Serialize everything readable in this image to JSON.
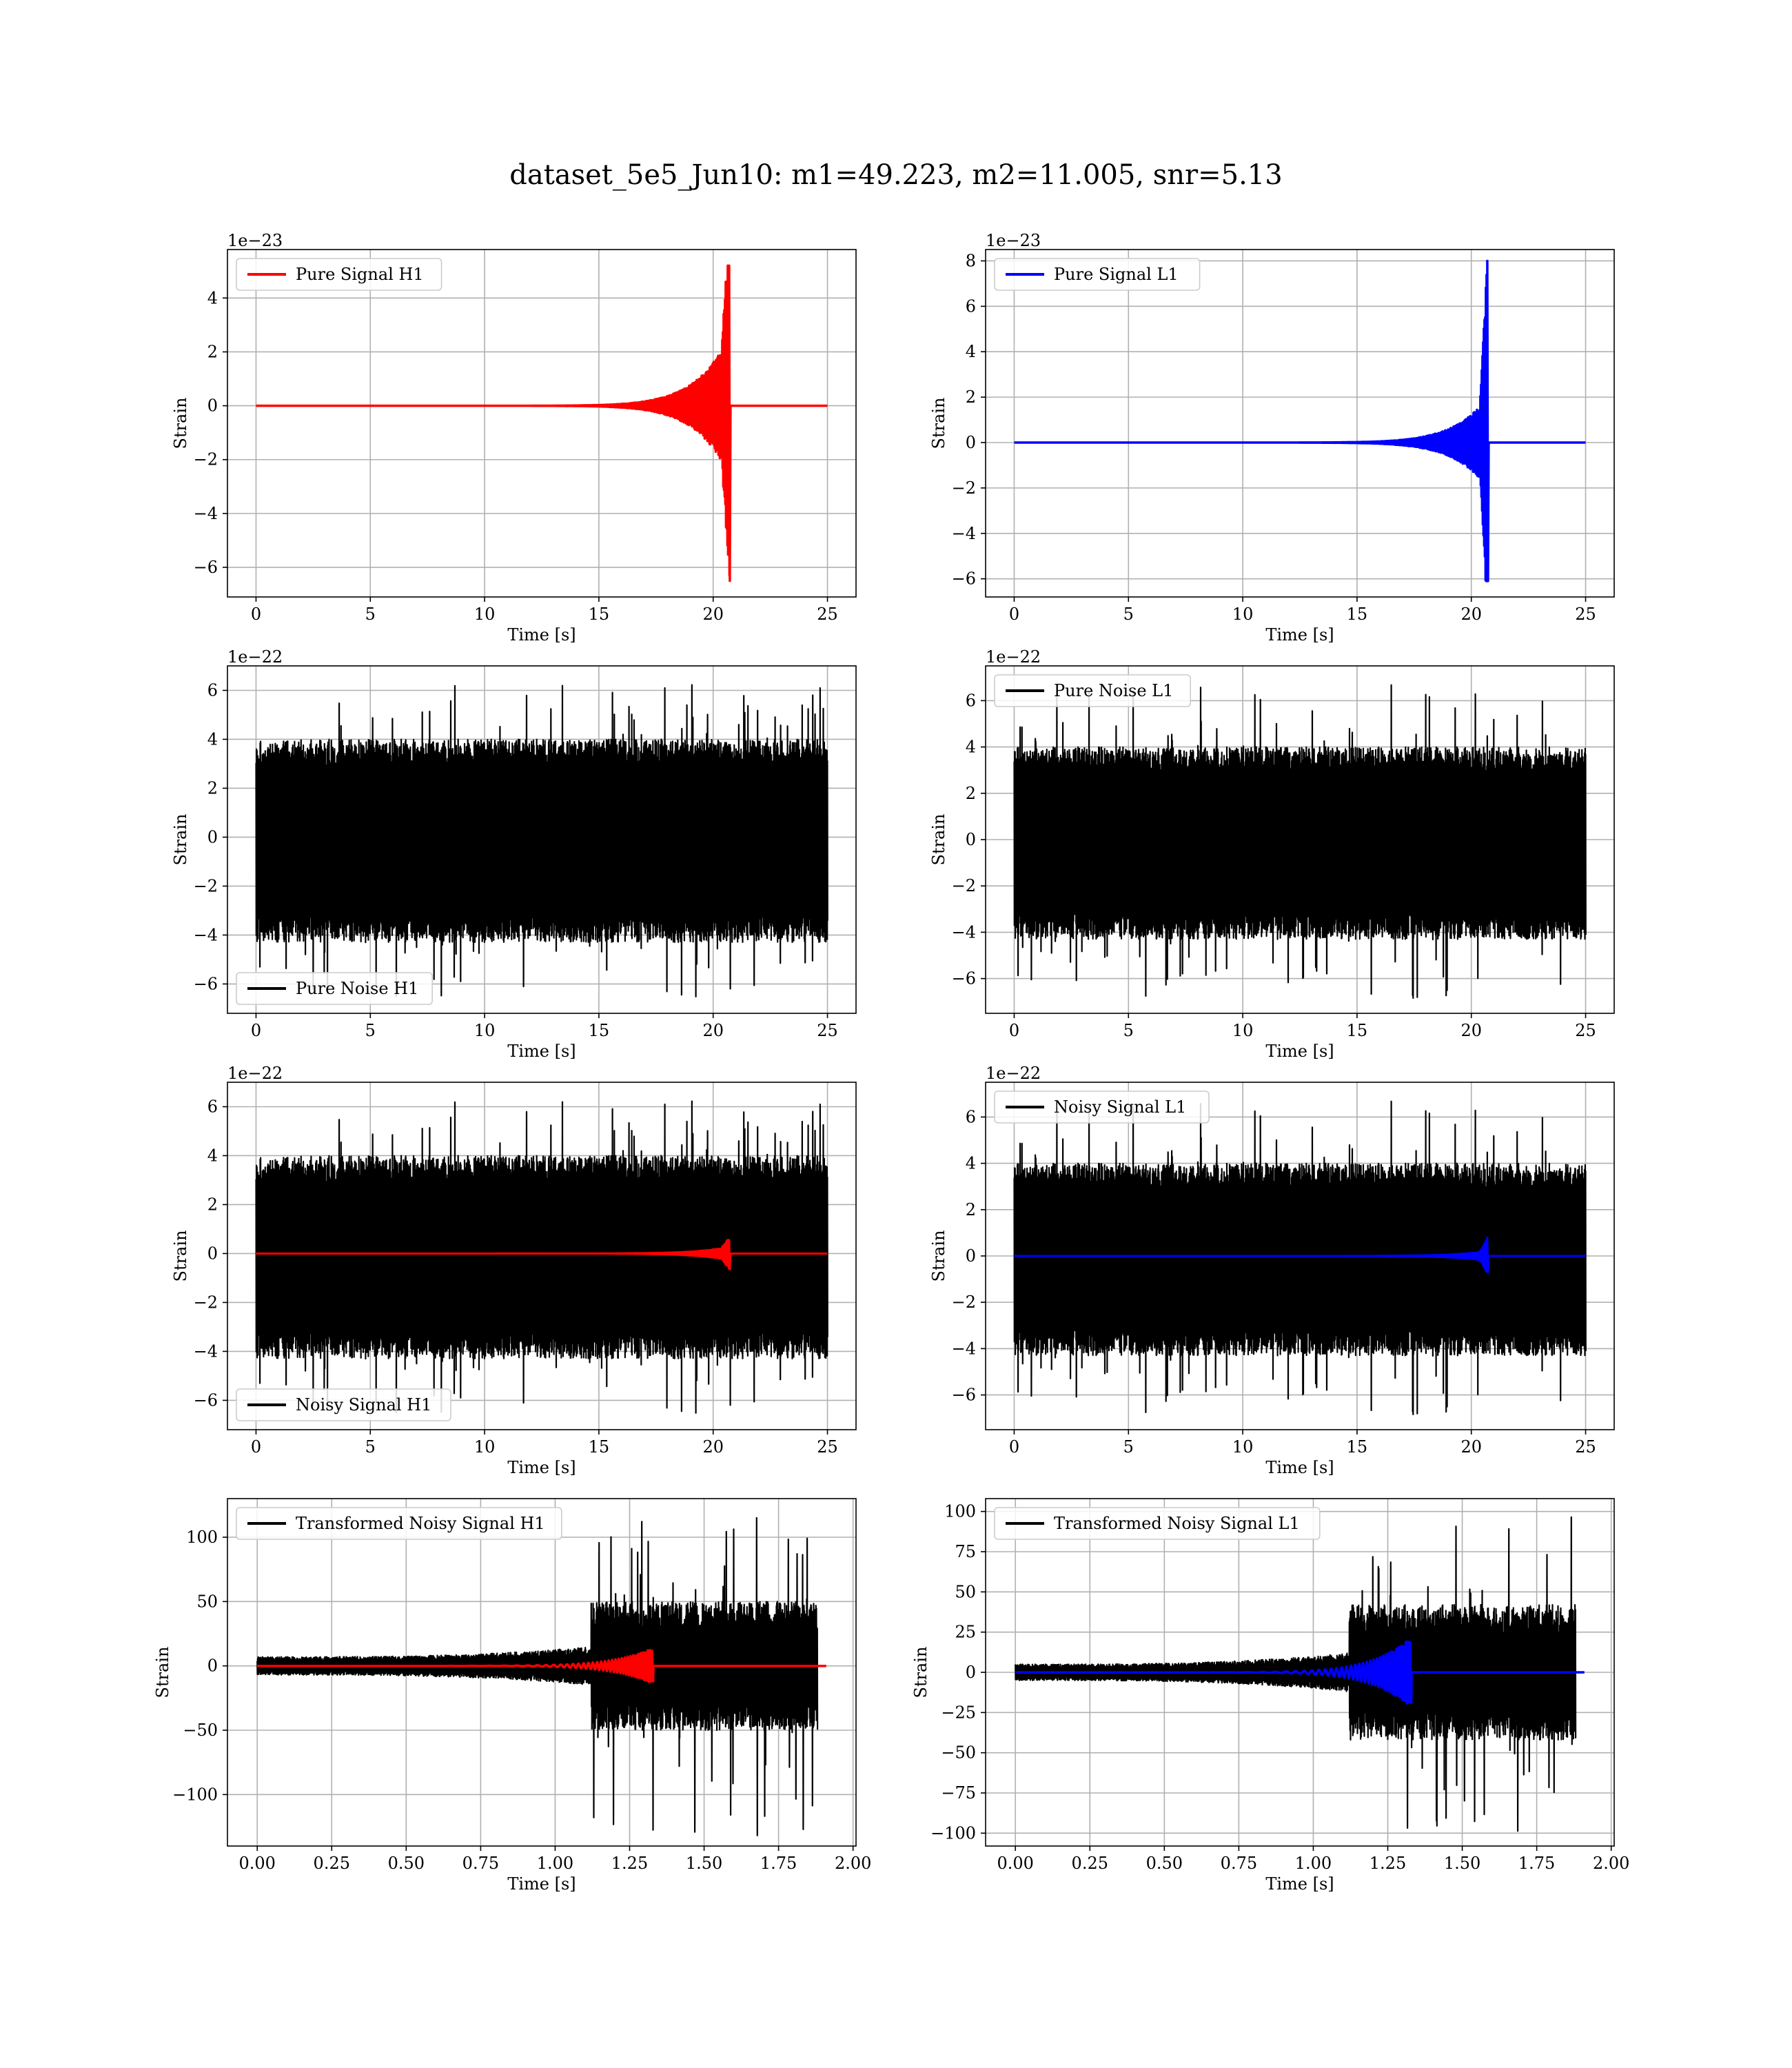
{
  "figure": {
    "title": "dataset_5e5_Jun10: m1=49.223, m2=11.005, snr=5.13"
  },
  "colors": {
    "signal_h1": "#ff0000",
    "signal_l1": "#0000ff",
    "noise": "#000000",
    "grid": "#b0b0b0"
  },
  "chart_data": [
    {
      "type": "line",
      "id": "pure-signal-h1",
      "kind": "signal",
      "offset_label": "1e−23",
      "xlabel": "Time [s]",
      "ylabel": "Strain",
      "xlim": [
        -1.25,
        26.25
      ],
      "ylim": [
        -7.1,
        5.8
      ],
      "xticks": [
        0,
        5,
        10,
        15,
        20,
        25
      ],
      "xtick_labels": [
        "0",
        "5",
        "10",
        "15",
        "20",
        "25"
      ],
      "yticks": [
        -6,
        -4,
        -2,
        0,
        2,
        4
      ],
      "ytick_labels": [
        "−6",
        "−4",
        "−2",
        "0",
        "2",
        "4"
      ],
      "legend": {
        "loc": "upper left"
      },
      "series": [
        {
          "name": "Pure Signal H1",
          "color": "#ff0000",
          "envelope": {
            "t_start": 0,
            "t_merger": 20.7,
            "t_end": 25,
            "peak_pos": 5.2,
            "peak_neg": -6.5,
            "plateau": 2.6
          }
        }
      ]
    },
    {
      "type": "line",
      "id": "pure-signal-l1",
      "kind": "signal",
      "offset_label": "1e−23",
      "xlabel": "Time [s]",
      "ylabel": "Strain",
      "xlim": [
        -1.25,
        26.25
      ],
      "ylim": [
        -6.8,
        8.5
      ],
      "xticks": [
        0,
        5,
        10,
        15,
        20,
        25
      ],
      "xtick_labels": [
        "0",
        "5",
        "10",
        "15",
        "20",
        "25"
      ],
      "yticks": [
        -6,
        -4,
        -2,
        0,
        2,
        4,
        6,
        8
      ],
      "ytick_labels": [
        "−6",
        "−4",
        "−2",
        "0",
        "2",
        "4",
        "6",
        "8"
      ],
      "legend": {
        "loc": "upper left"
      },
      "series": [
        {
          "name": "Pure Signal L1",
          "color": "#0000ff",
          "envelope": {
            "t_start": 0,
            "t_merger": 20.7,
            "t_end": 25,
            "peak_pos": 8.0,
            "peak_neg": -6.1,
            "plateau": 2.0
          }
        }
      ]
    },
    {
      "type": "line",
      "id": "pure-noise-h1",
      "kind": "noise",
      "offset_label": "1e−22",
      "xlabel": "Time [s]",
      "ylabel": "Strain",
      "xlim": [
        -1.25,
        26.25
      ],
      "ylim": [
        -7.2,
        7.0
      ],
      "xticks": [
        0,
        5,
        10,
        15,
        20,
        25
      ],
      "xtick_labels": [
        "0",
        "5",
        "10",
        "15",
        "20",
        "25"
      ],
      "yticks": [
        -6,
        -4,
        -2,
        0,
        2,
        4,
        6
      ],
      "ytick_labels": [
        "−6",
        "−4",
        "−2",
        "0",
        "2",
        "4",
        "6"
      ],
      "legend": {
        "loc": "lower left"
      },
      "series": [
        {
          "name": "Pure Noise H1",
          "color": "#000000",
          "noise": {
            "t_start": 0,
            "t_end": 25,
            "mean": -0.4,
            "typical_max": 4.0,
            "typical_min": -4.3,
            "extreme_max": 6.3,
            "extreme_min": -6.6
          }
        }
      ]
    },
    {
      "type": "line",
      "id": "pure-noise-l1",
      "kind": "noise",
      "offset_label": "1e−22",
      "xlabel": "Time [s]",
      "ylabel": "Strain",
      "xlim": [
        -1.25,
        26.25
      ],
      "ylim": [
        -7.5,
        7.5
      ],
      "xticks": [
        0,
        5,
        10,
        15,
        20,
        25
      ],
      "xtick_labels": [
        "0",
        "5",
        "10",
        "15",
        "20",
        "25"
      ],
      "yticks": [
        -6,
        -4,
        -2,
        0,
        2,
        4,
        6
      ],
      "ytick_labels": [
        "−6",
        "−4",
        "−2",
        "0",
        "2",
        "4",
        "6"
      ],
      "legend": {
        "loc": "upper left"
      },
      "series": [
        {
          "name": "Pure Noise L1",
          "color": "#000000",
          "noise": {
            "t_start": 0,
            "t_end": 25,
            "mean": -0.4,
            "typical_max": 4.0,
            "typical_min": -4.3,
            "extreme_max": 6.8,
            "extreme_min": -6.9
          }
        }
      ]
    },
    {
      "type": "line",
      "id": "noisy-signal-h1",
      "kind": "noisy",
      "offset_label": "1e−22",
      "xlabel": "Time [s]",
      "ylabel": "Strain",
      "xlim": [
        -1.25,
        26.25
      ],
      "ylim": [
        -7.2,
        7.0
      ],
      "xticks": [
        0,
        5,
        10,
        15,
        20,
        25
      ],
      "xtick_labels": [
        "0",
        "5",
        "10",
        "15",
        "20",
        "25"
      ],
      "yticks": [
        -6,
        -4,
        -2,
        0,
        2,
        4,
        6
      ],
      "ytick_labels": [
        "−6",
        "−4",
        "−2",
        "0",
        "2",
        "4",
        "6"
      ],
      "legend": {
        "loc": "lower left"
      },
      "series": [
        {
          "name": "Noisy Signal H1",
          "color": "#000000",
          "noise": {
            "t_start": 0,
            "t_end": 25,
            "mean": -0.4,
            "typical_max": 4.0,
            "typical_min": -4.3,
            "extreme_max": 6.3,
            "extreme_min": -6.6
          }
        },
        {
          "name": "",
          "color": "#ff0000",
          "envelope": {
            "t_start": 0,
            "t_merger": 20.7,
            "t_end": 25,
            "peak_pos": 0.55,
            "peak_neg": -0.65,
            "plateau": 0.28
          }
        }
      ]
    },
    {
      "type": "line",
      "id": "noisy-signal-l1",
      "kind": "noisy",
      "offset_label": "1e−22",
      "xlabel": "Time [s]",
      "ylabel": "Strain",
      "xlim": [
        -1.25,
        26.25
      ],
      "ylim": [
        -7.5,
        7.5
      ],
      "xticks": [
        0,
        5,
        10,
        15,
        20,
        25
      ],
      "xtick_labels": [
        "0",
        "5",
        "10",
        "15",
        "20",
        "25"
      ],
      "yticks": [
        -6,
        -4,
        -2,
        0,
        2,
        4,
        6
      ],
      "ytick_labels": [
        "−6",
        "−4",
        "−2",
        "0",
        "2",
        "4",
        "6"
      ],
      "legend": {
        "loc": "upper left"
      },
      "series": [
        {
          "name": "Noisy Signal L1",
          "color": "#000000",
          "noise": {
            "t_start": 0,
            "t_end": 25,
            "mean": -0.4,
            "typical_max": 4.0,
            "typical_min": -4.3,
            "extreme_max": 6.8,
            "extreme_min": -6.9
          }
        },
        {
          "name": "",
          "color": "#0000ff",
          "envelope": {
            "t_start": 0,
            "t_merger": 20.7,
            "t_end": 25,
            "peak_pos": 0.8,
            "peak_neg": -0.7,
            "plateau": 0.22
          }
        }
      ]
    },
    {
      "type": "line",
      "id": "transformed-noisy-signal-h1",
      "kind": "transformed",
      "offset_label": "",
      "xlabel": "Time [s]",
      "ylabel": "Strain",
      "xlim": [
        -0.1,
        2.01
      ],
      "ylim": [
        -140,
        130
      ],
      "xticks": [
        0,
        0.25,
        0.5,
        0.75,
        1.0,
        1.25,
        1.5,
        1.75,
        2.0
      ],
      "xtick_labels": [
        "0.00",
        "0.25",
        "0.50",
        "0.75",
        "1.00",
        "1.25",
        "1.50",
        "1.75",
        "2.00"
      ],
      "yticks": [
        -100,
        -50,
        0,
        50,
        100
      ],
      "ytick_labels": [
        "−100",
        "−50",
        "0",
        "50",
        "100"
      ],
      "legend": {
        "loc": "upper left"
      },
      "series": [
        {
          "name": "Transformed Noisy Signal H1",
          "color": "#000000",
          "transformed": {
            "t_start": 0,
            "t_step": 1.12,
            "t_end": 1.88,
            "early_amp_start": 7,
            "early_amp_end": 15,
            "late_amp": 50,
            "extreme_max": 118,
            "extreme_min": -132
          }
        },
        {
          "name": "",
          "color": "#ff0000",
          "chirp": {
            "t_start": 0,
            "t_merger": 1.33,
            "t_end": 1.91,
            "peak": 14
          }
        }
      ]
    },
    {
      "type": "line",
      "id": "transformed-noisy-signal-l1",
      "kind": "transformed",
      "offset_label": "",
      "xlabel": "Time [s]",
      "ylabel": "Strain",
      "xlim": [
        -0.1,
        2.01
      ],
      "ylim": [
        -108,
        108
      ],
      "xticks": [
        0,
        0.25,
        0.5,
        0.75,
        1.0,
        1.25,
        1.5,
        1.75,
        2.0
      ],
      "xtick_labels": [
        "0.00",
        "0.25",
        "0.50",
        "0.75",
        "1.00",
        "1.25",
        "1.50",
        "1.75",
        "2.00"
      ],
      "yticks": [
        -100,
        -75,
        -50,
        -25,
        0,
        25,
        50,
        75,
        100
      ],
      "ytick_labels": [
        "−100",
        "−75",
        "−50",
        "−25",
        "0",
        "25",
        "50",
        "75",
        "100"
      ],
      "legend": {
        "loc": "upper left"
      },
      "series": [
        {
          "name": "Transformed Noisy Signal L1",
          "color": "#000000",
          "transformed": {
            "t_start": 0,
            "t_step": 1.12,
            "t_end": 1.88,
            "early_amp_start": 5,
            "early_amp_end": 12,
            "late_amp": 42,
            "extreme_max": 100,
            "extreme_min": -100
          }
        },
        {
          "name": "",
          "color": "#0000ff",
          "chirp": {
            "t_start": 0,
            "t_merger": 1.33,
            "t_end": 1.91,
            "peak": 22
          }
        }
      ]
    }
  ]
}
